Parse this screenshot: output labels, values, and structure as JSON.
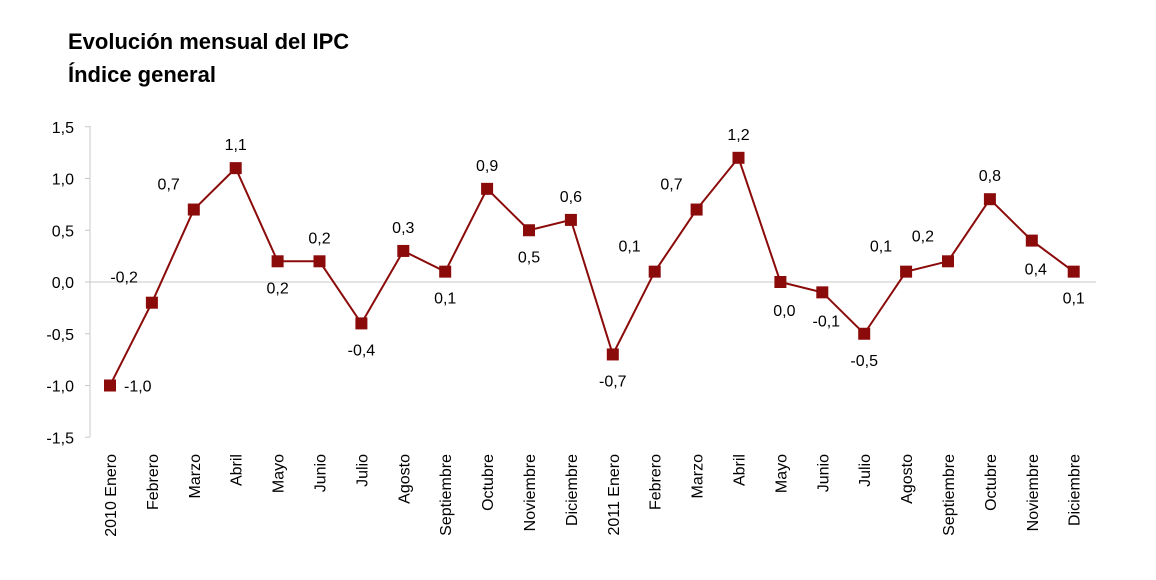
{
  "chart_data": {
    "type": "line",
    "title": "Evolución mensual del IPC",
    "subtitle": "Índice general",
    "xlabel": "",
    "ylabel": "",
    "ylim": [
      -1.5,
      1.5
    ],
    "yticks": [
      "1,5",
      "1,0",
      "0,5",
      "0,0",
      "-0,5",
      "-1,0",
      "-1,5"
    ],
    "ytick_values": [
      1.5,
      1.0,
      0.5,
      0.0,
      -0.5,
      -1.0,
      -1.5
    ],
    "grid": false,
    "legend": "none",
    "colors": {
      "series": "#8b0a0a",
      "axis": "#c8c8c8"
    },
    "categories": [
      "2010 Enero",
      "Febrero",
      "Marzo",
      "Abril",
      "Mayo",
      "Junio",
      "Julio",
      "Agosto",
      "Septiembre",
      "Octubre",
      "Noviembre",
      "Diciembre",
      "2011 Enero",
      "Febrero",
      "Marzo",
      "Abril",
      "Mayo",
      "Junio",
      "Julio",
      "Agosto",
      "Septiembre",
      "Octubre",
      "Noviembre",
      "Diciembre"
    ],
    "series": [
      {
        "values": [
          -1.0,
          -0.2,
          0.7,
          1.1,
          0.2,
          0.2,
          -0.4,
          0.3,
          0.1,
          0.9,
          0.5,
          0.6,
          -0.7,
          0.1,
          0.7,
          1.2,
          0.0,
          -0.1,
          -0.5,
          0.1,
          0.2,
          0.8,
          0.4,
          0.1
        ],
        "labels": [
          "-1,0",
          "-0,2",
          "0,7",
          "1,1",
          "0,2",
          "0,2",
          "-0,4",
          "0,3",
          "0,1",
          "0,9",
          "0,5",
          "0,6",
          "-0,7",
          "0,1",
          "0,7",
          "1,2",
          "0,0",
          "-0,1",
          "-0,5",
          "0,1",
          "0,2",
          "0,8",
          "0,4",
          "0,1"
        ]
      }
    ]
  }
}
